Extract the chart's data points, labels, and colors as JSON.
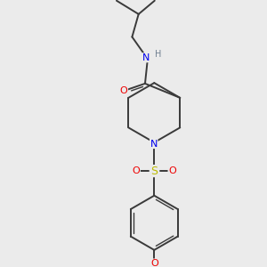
{
  "bg_color": "#ebebeb",
  "bond_color": "#3a3a3a",
  "atom_colors": {
    "N": "#0000ee",
    "O": "#ee0000",
    "S": "#bbbb00",
    "H": "#708090",
    "C": "#3a3a3a"
  },
  "bond_lw": 1.4,
  "double_lw": 1.0,
  "font_size": 7.5,
  "fig_size": [
    3.0,
    3.0
  ],
  "dpi": 100
}
